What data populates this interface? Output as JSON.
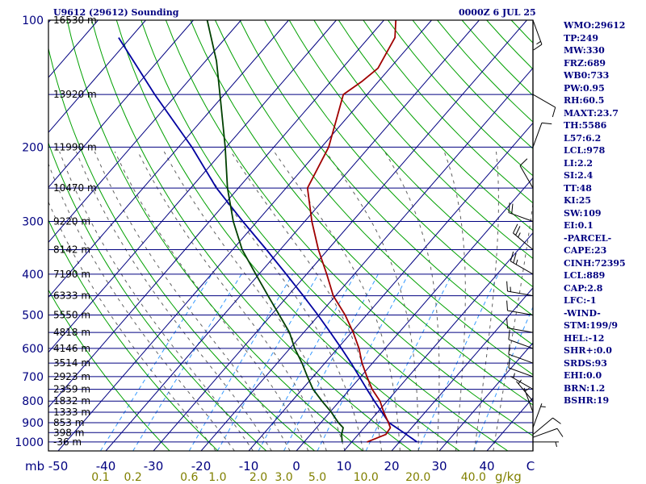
{
  "header": {
    "station": "U9612 (29612) Sounding",
    "time": "0000Z  6 JUL 25"
  },
  "indices": [
    "WMO:29612",
    "TP:249",
    "MW:330",
    "FRZ:689",
    "WB0:733",
    "PW:0.95",
    "RH:60.5",
    "MAXT:23.7",
    "TH:5586",
    "L57:6.2",
    "LCL:978",
    "LI:2.2",
    "SI:2.4",
    "TT:48",
    "KI:25",
    "SW:109",
    "EI:0.1",
    "-PARCEL-",
    "CAPE:23",
    "CINH:72395",
    "LCL:889",
    "CAP:2.8",
    "LFC:-1",
    "-WIND-",
    "STM:199/9",
    "HEL:-12",
    "SHR+:0.0",
    "SRDS:93",
    "EHI:0.0",
    "BRN:1.2",
    "BSHR:19"
  ],
  "colors": {
    "frame": "#000000",
    "isobar": "#000080",
    "isotherm": "#000080",
    "dry_adiabat": "#00a000",
    "moist_adiabat": "#606060",
    "mixing_ratio": "#3399ff",
    "temperature": "#a00000",
    "dewpoint": "#004000",
    "parcel": "#0000a0",
    "mr_labels": "#808000"
  },
  "chart_data": {
    "type": "skew-t",
    "pressure_labels": [
      "100",
      "200",
      "300",
      "400",
      "500",
      "600",
      "700",
      "800",
      "900",
      "1000"
    ],
    "pressure_ticks": [
      100,
      200,
      300,
      400,
      500,
      600,
      700,
      800,
      900,
      1000
    ],
    "height_labels": [
      {
        "p": 100,
        "label": "16530 m"
      },
      {
        "p": 150,
        "label": "13920 m"
      },
      {
        "p": 200,
        "label": "11990 m"
      },
      {
        "p": 250,
        "label": "10470 m"
      },
      {
        "p": 300,
        "label": "9220 m"
      },
      {
        "p": 350,
        "label": "8142 m"
      },
      {
        "p": 400,
        "label": "7190 m"
      },
      {
        "p": 450,
        "label": "6333 m"
      },
      {
        "p": 500,
        "label": "5550 m"
      },
      {
        "p": 550,
        "label": "4818 m"
      },
      {
        "p": 600,
        "label": "4146 m"
      },
      {
        "p": 650,
        "label": "3514 m"
      },
      {
        "p": 700,
        "label": "2923 m"
      },
      {
        "p": 750,
        "label": "2359 m"
      },
      {
        "p": 800,
        "label": "1832 m"
      },
      {
        "p": 850,
        "label": "1333 m"
      },
      {
        "p": 900,
        "label": "853 m"
      },
      {
        "p": 950,
        "label": "398 m"
      },
      {
        "p": 1000,
        "label": "-36 m"
      }
    ],
    "x_unit": "mb",
    "temp_labels": [
      "-50",
      "-40",
      "-30",
      "-20",
      "-10",
      "0",
      "10",
      "20",
      "30",
      "40"
    ],
    "temp_ticks": [
      -50,
      -40,
      -30,
      -20,
      -10,
      0,
      10,
      20,
      30,
      40
    ],
    "temp_unit": "C",
    "mixing_ratio_labels": [
      "0.1",
      "0.2",
      "0.6",
      "1.0",
      "2.0",
      "3.0",
      "5.0",
      "10.0",
      "20.0",
      "40.0"
    ],
    "mixing_ratio_ticks": [
      0.1,
      0.2,
      0.6,
      1.0,
      2.0,
      3.0,
      5.0,
      10.0,
      20.0,
      40.0
    ],
    "mixing_ratio_unit": "g/kg",
    "temperature": [
      {
        "p": 1000,
        "t": 13.2
      },
      {
        "p": 960,
        "t": 15.8
      },
      {
        "p": 925,
        "t": 15.5
      },
      {
        "p": 900,
        "t": 14.2
      },
      {
        "p": 850,
        "t": 11.3
      },
      {
        "p": 800,
        "t": 8.5
      },
      {
        "p": 750,
        "t": 4.7
      },
      {
        "p": 700,
        "t": 1.3
      },
      {
        "p": 650,
        "t": -2.2
      },
      {
        "p": 600,
        "t": -5.5
      },
      {
        "p": 550,
        "t": -9.6
      },
      {
        "p": 500,
        "t": -14.5
      },
      {
        "p": 450,
        "t": -20.5
      },
      {
        "p": 400,
        "t": -25.8
      },
      {
        "p": 350,
        "t": -32.0
      },
      {
        "p": 300,
        "t": -38.5
      },
      {
        "p": 250,
        "t": -45.5
      },
      {
        "p": 200,
        "t": -48.5
      },
      {
        "p": 175,
        "t": -51.5
      },
      {
        "p": 150,
        "t": -55.0
      },
      {
        "p": 140,
        "t": -53.5
      },
      {
        "p": 130,
        "t": -52.5
      },
      {
        "p": 110,
        "t": -54.5
      },
      {
        "p": 100,
        "t": -57.5
      }
    ],
    "dewpoint": [
      {
        "p": 1000,
        "t": 8.0
      },
      {
        "p": 960,
        "t": 6.5
      },
      {
        "p": 925,
        "t": 5.6
      },
      {
        "p": 900,
        "t": 3.7
      },
      {
        "p": 850,
        "t": 0.3
      },
      {
        "p": 800,
        "t": -3.7
      },
      {
        "p": 750,
        "t": -7.7
      },
      {
        "p": 700,
        "t": -11.2
      },
      {
        "p": 650,
        "t": -14.8
      },
      {
        "p": 600,
        "t": -19.0
      },
      {
        "p": 550,
        "t": -23.0
      },
      {
        "p": 500,
        "t": -28.3
      },
      {
        "p": 450,
        "t": -34.2
      },
      {
        "p": 400,
        "t": -40.7
      },
      {
        "p": 350,
        "t": -48.0
      },
      {
        "p": 300,
        "t": -55.0
      },
      {
        "p": 250,
        "t": -62.3
      },
      {
        "p": 200,
        "t": -70.2
      },
      {
        "p": 150,
        "t": -80.9
      },
      {
        "p": 125,
        "t": -87.7
      },
      {
        "p": 100,
        "t": -97.1
      }
    ],
    "parcel": [
      {
        "p": 1000,
        "t": 23.7
      },
      {
        "p": 950,
        "t": 19.2
      },
      {
        "p": 925,
        "t": 16.8
      },
      {
        "p": 900,
        "t": 14.3
      },
      {
        "p": 850,
        "t": 10.9
      },
      {
        "p": 800,
        "t": 7.3
      },
      {
        "p": 750,
        "t": 3.6
      },
      {
        "p": 700,
        "t": -0.3
      },
      {
        "p": 650,
        "t": -4.5
      },
      {
        "p": 600,
        "t": -9.2
      },
      {
        "p": 550,
        "t": -14.4
      },
      {
        "p": 500,
        "t": -20.2
      },
      {
        "p": 450,
        "t": -26.8
      },
      {
        "p": 400,
        "t": -34.3
      },
      {
        "p": 350,
        "t": -42.9
      },
      {
        "p": 300,
        "t": -53.0
      },
      {
        "p": 250,
        "t": -64.6
      },
      {
        "p": 200,
        "t": -77.2
      },
      {
        "p": 150,
        "t": -94.6
      },
      {
        "p": 110,
        "t": -112.5
      }
    ],
    "wind_barbs": [
      {
        "p": 1000,
        "knots": 5,
        "dir": 90
      },
      {
        "p": 975,
        "knots": 10,
        "dir": 70
      },
      {
        "p": 960,
        "knots": 10,
        "dir": 50
      },
      {
        "p": 925,
        "knots": 5,
        "dir": 20
      },
      {
        "p": 850,
        "knots": 5,
        "dir": 340
      },
      {
        "p": 800,
        "knots": 5,
        "dir": 320
      },
      {
        "p": 750,
        "knots": 5,
        "dir": 300
      },
      {
        "p": 700,
        "knots": 10,
        "dir": 290
      },
      {
        "p": 650,
        "knots": 10,
        "dir": 290
      },
      {
        "p": 600,
        "knots": 10,
        "dir": 290
      },
      {
        "p": 550,
        "knots": 10,
        "dir": 280
      },
      {
        "p": 500,
        "knots": 10,
        "dir": 280
      },
      {
        "p": 450,
        "knots": 15,
        "dir": 280
      },
      {
        "p": 400,
        "knots": 25,
        "dir": 300
      },
      {
        "p": 350,
        "knots": 25,
        "dir": 310
      },
      {
        "p": 300,
        "knots": 20,
        "dir": 290
      },
      {
        "p": 250,
        "knots": 10,
        "dir": 330
      },
      {
        "p": 200,
        "knots": 10,
        "dir": 20
      },
      {
        "p": 150,
        "knots": 10,
        "dir": 120
      },
      {
        "p": 100,
        "knots": 15,
        "dir": 160
      }
    ]
  }
}
